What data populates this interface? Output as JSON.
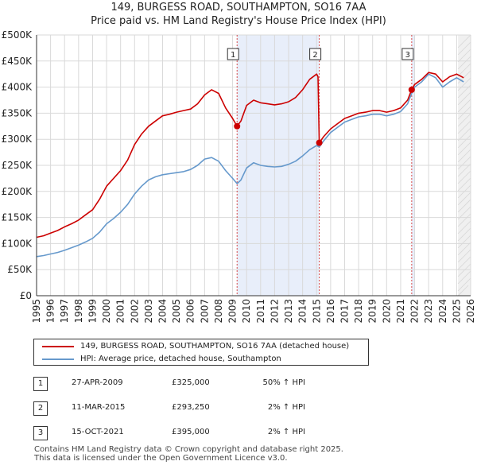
{
  "header": {
    "title_line1": "149, BURGESS ROAD, SOUTHAMPTON, SO16 7AA",
    "title_line2": "Price paid vs. HM Land Registry's House Price Index (HPI)"
  },
  "legend": {
    "items": [
      {
        "label": "149, BURGESS ROAD, SOUTHAMPTON, SO16 7AA (detached house)",
        "color": "#cc0000"
      },
      {
        "label": "HPI: Average price, detached house, Southampton",
        "color": "#6699cc"
      }
    ]
  },
  "sales": [
    {
      "num": "1",
      "date": "27-APR-2009",
      "price": "£325,000",
      "hpi": "50% ↑ HPI"
    },
    {
      "num": "2",
      "date": "11-MAR-2015",
      "price": "£293,250",
      "hpi": "2% ↑ HPI"
    },
    {
      "num": "3",
      "date": "15-OCT-2021",
      "price": "£395,000",
      "hpi": "2% ↑ HPI"
    }
  ],
  "footer": {
    "line1": "Contains HM Land Registry data © Crown copyright and database right 2025.",
    "line2": "This data is licensed under the Open Government Licence v3.0."
  },
  "chart_data": {
    "type": "line",
    "title": "149, BURGESS ROAD, SOUTHAMPTON, SO16 7AA",
    "subtitle": "Price paid vs. HM Land Registry's House Price Index (HPI)",
    "xlabel": "",
    "ylabel": "",
    "xlim": [
      1995,
      2026
    ],
    "ylim": [
      0,
      500000
    ],
    "grid": true,
    "x_ticks": [
      1995,
      1996,
      1997,
      1998,
      1999,
      2000,
      2001,
      2002,
      2003,
      2004,
      2005,
      2006,
      2007,
      2008,
      2009,
      2010,
      2011,
      2012,
      2013,
      2014,
      2015,
      2016,
      2017,
      2018,
      2019,
      2020,
      2021,
      2022,
      2023,
      2024,
      2025,
      2026
    ],
    "x_tick_labels": [
      "1995",
      "1996",
      "1997",
      "1998",
      "1999",
      "2000",
      "2001",
      "2002",
      "2003",
      "2004",
      "2005",
      "2006",
      "2007",
      "2008",
      "2009",
      "2010",
      "2011",
      "2012",
      "2013",
      "2014",
      "2015",
      "2016",
      "2017",
      "2018",
      "2019",
      "2020",
      "2021",
      "2022",
      "2023",
      "2024",
      "2025",
      "2026"
    ],
    "y_ticks": [
      0,
      50000,
      100000,
      150000,
      200000,
      250000,
      300000,
      350000,
      400000,
      450000,
      500000
    ],
    "y_tick_labels": [
      "£0",
      "£50K",
      "£100K",
      "£150K",
      "£200K",
      "£250K",
      "£300K",
      "£350K",
      "£400K",
      "£450K",
      "£500K"
    ],
    "shaded_regions": [
      [
        2009.32,
        2015.19
      ],
      [
        2021.79,
        2022.0
      ]
    ],
    "future_region_start": 2025.1,
    "series": [
      {
        "name": "149, BURGESS ROAD, SOUTHAMPTON, SO16 7AA (detached house)",
        "color": "#cc0000",
        "x": [
          1995.0,
          1995.5,
          1996.0,
          1996.5,
          1997.0,
          1997.5,
          1998.0,
          1998.5,
          1999.0,
          1999.5,
          2000.0,
          2000.5,
          2001.0,
          2001.5,
          2002.0,
          2002.5,
          2003.0,
          2003.5,
          2004.0,
          2004.5,
          2005.0,
          2005.5,
          2006.0,
          2006.5,
          2007.0,
          2007.5,
          2008.0,
          2008.5,
          2009.0,
          2009.32,
          2009.6,
          2010.0,
          2010.5,
          2011.0,
          2011.5,
          2012.0,
          2012.5,
          2013.0,
          2013.5,
          2014.0,
          2014.5,
          2015.0,
          2015.1,
          2015.19,
          2015.5,
          2016.0,
          2016.5,
          2017.0,
          2017.5,
          2018.0,
          2018.5,
          2019.0,
          2019.5,
          2020.0,
          2020.5,
          2021.0,
          2021.5,
          2021.79,
          2022.0,
          2022.5,
          2023.0,
          2023.5,
          2024.0,
          2024.5,
          2025.0,
          2025.5
        ],
        "values": [
          112000,
          115000,
          120000,
          125000,
          132000,
          138000,
          145000,
          155000,
          165000,
          185000,
          210000,
          225000,
          240000,
          260000,
          290000,
          310000,
          325000,
          335000,
          345000,
          348000,
          352000,
          355000,
          358000,
          368000,
          385000,
          395000,
          388000,
          360000,
          340000,
          325000,
          335000,
          365000,
          375000,
          370000,
          368000,
          366000,
          368000,
          372000,
          380000,
          395000,
          415000,
          425000,
          420000,
          293250,
          305000,
          320000,
          330000,
          340000,
          345000,
          350000,
          352000,
          355000,
          355000,
          352000,
          355000,
          360000,
          375000,
          395000,
          405000,
          415000,
          428000,
          425000,
          410000,
          420000,
          425000,
          418000
        ]
      },
      {
        "name": "HPI: Average price, detached house, Southampton",
        "color": "#6699cc",
        "x": [
          1995.0,
          1995.5,
          1996.0,
          1996.5,
          1997.0,
          1997.5,
          1998.0,
          1998.5,
          1999.0,
          1999.5,
          2000.0,
          2000.5,
          2001.0,
          2001.5,
          2002.0,
          2002.5,
          2003.0,
          2003.5,
          2004.0,
          2004.5,
          2005.0,
          2005.5,
          2006.0,
          2006.5,
          2007.0,
          2007.5,
          2008.0,
          2008.5,
          2009.0,
          2009.32,
          2009.6,
          2010.0,
          2010.5,
          2011.0,
          2011.5,
          2012.0,
          2012.5,
          2013.0,
          2013.5,
          2014.0,
          2014.5,
          2015.0,
          2015.19,
          2015.5,
          2016.0,
          2016.5,
          2017.0,
          2017.5,
          2018.0,
          2018.5,
          2019.0,
          2019.5,
          2020.0,
          2020.5,
          2021.0,
          2021.5,
          2021.79,
          2022.0,
          2022.5,
          2023.0,
          2023.5,
          2024.0,
          2024.5,
          2025.0,
          2025.5
        ],
        "values": [
          75000,
          77000,
          80000,
          83000,
          87000,
          92000,
          97000,
          103000,
          110000,
          122000,
          138000,
          148000,
          160000,
          175000,
          195000,
          210000,
          222000,
          228000,
          232000,
          234000,
          236000,
          238000,
          242000,
          250000,
          262000,
          265000,
          258000,
          240000,
          225000,
          215000,
          222000,
          245000,
          255000,
          250000,
          248000,
          247000,
          248000,
          252000,
          258000,
          268000,
          280000,
          288000,
          285000,
          297000,
          313000,
          323000,
          333000,
          338000,
          343000,
          345000,
          348000,
          348000,
          345000,
          348000,
          353000,
          368000,
          388000,
          400000,
          410000,
          425000,
          418000,
          400000,
          410000,
          418000,
          410000
        ]
      }
    ],
    "sales_markers": [
      {
        "label": "1",
        "x": 2009.32,
        "y": 325000
      },
      {
        "label": "2",
        "x": 2015.19,
        "y": 293250
      },
      {
        "label": "3",
        "x": 2021.79,
        "y": 395000
      }
    ]
  }
}
